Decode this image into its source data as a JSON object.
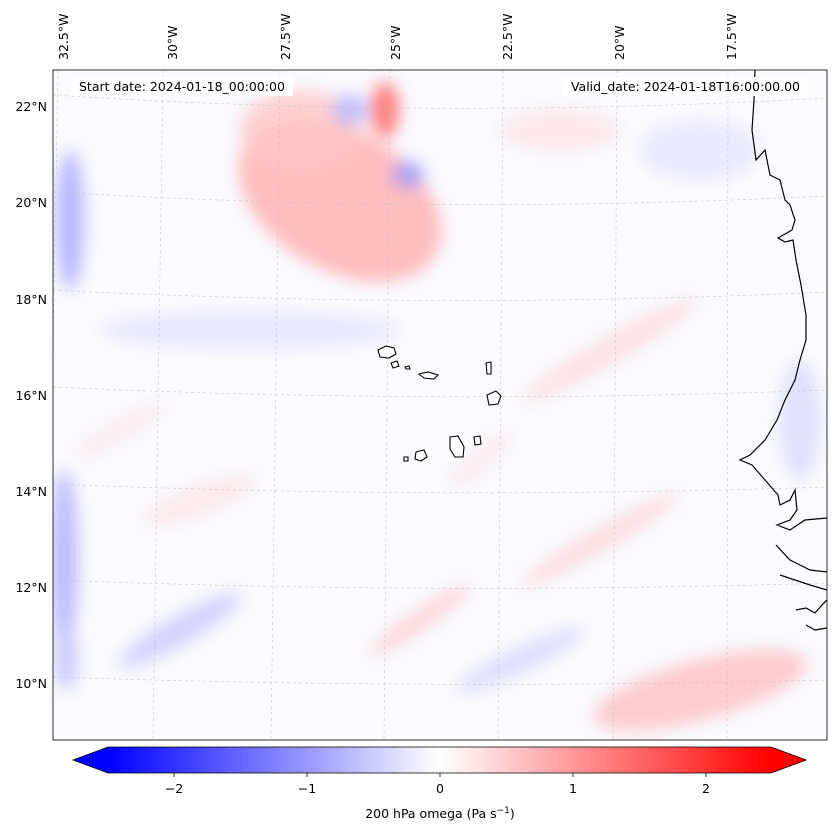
{
  "map": {
    "start_date": "Start date: 2024-01-18_00:00:00",
    "valid_date": "Valid_date: 2024-01-18T16:00:00.00",
    "lon_labels": [
      "32.5°W",
      "30°W",
      "27.5°W",
      "25°W",
      "22.5°W",
      "20°W",
      "17.5°W"
    ],
    "lat_labels": [
      "22°N",
      "20°N",
      "18°N",
      "16°N",
      "14°N",
      "12°N",
      "10°N"
    ],
    "features": [
      "Cabo Verde islands",
      "West African coastline"
    ],
    "colors": {
      "negative": "#0000ff",
      "zero": "#ffffff",
      "positive": "#ff0000",
      "coast": "#000000",
      "grid": "#bbbbbb"
    }
  },
  "colorbar": {
    "label_prefix": "200 hPa omega (Pa s",
    "label_exp": "−1",
    "label_suffix": ")",
    "ticks": [
      "−2",
      "−1",
      "0",
      "1",
      "2"
    ],
    "range": [
      -2.75,
      2.75
    ]
  }
}
